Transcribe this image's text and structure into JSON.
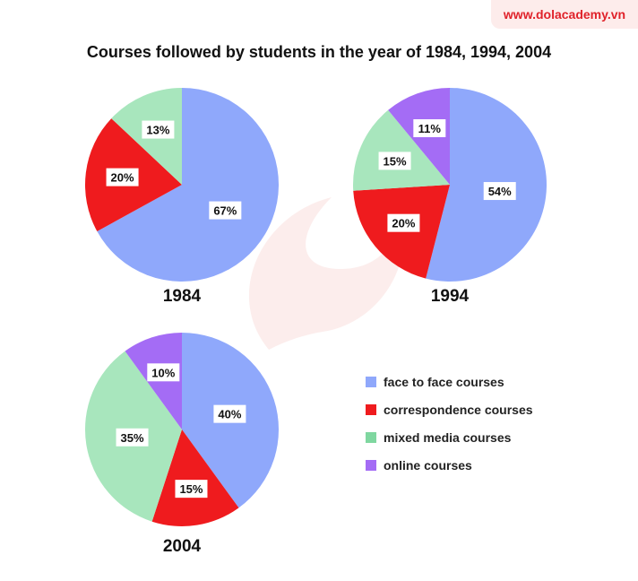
{
  "watermark": {
    "text": "www.dolacademy.vn"
  },
  "title": "Courses followed by students in the year of 1984, 1994, 2004",
  "legend": [
    {
      "label": "face to face courses",
      "color": "#8fa8fb"
    },
    {
      "label": "correspondence courses",
      "color": "#ef1b1e"
    },
    {
      "label": "mixed media courses",
      "color": "#a8e6bd"
    },
    {
      "label": "online courses",
      "color": "#a46cf5"
    }
  ],
  "legend_swatch_colors": [
    "#8fa8fb",
    "#ef1b1e",
    "#7fd7a0",
    "#a46cf5"
  ],
  "chart_data": [
    {
      "type": "pie",
      "title": "1984",
      "slices": [
        {
          "name": "face to face courses",
          "value": 67,
          "label": "67%",
          "color": "#8fa8fb"
        },
        {
          "name": "correspondence courses",
          "value": 20,
          "label": "20%",
          "color": "#ef1b1e"
        },
        {
          "name": "mixed media courses",
          "value": 13,
          "label": "13%",
          "color": "#a8e6bd"
        }
      ]
    },
    {
      "type": "pie",
      "title": "1994",
      "slices": [
        {
          "name": "face to face courses",
          "value": 54,
          "label": "54%",
          "color": "#8fa8fb"
        },
        {
          "name": "correspondence courses",
          "value": 20,
          "label": "20%",
          "color": "#ef1b1e"
        },
        {
          "name": "mixed media courses",
          "value": 15,
          "label": "15%",
          "color": "#a8e6bd"
        },
        {
          "name": "online courses",
          "value": 11,
          "label": "11%",
          "color": "#a46cf5"
        }
      ]
    },
    {
      "type": "pie",
      "title": "2004",
      "slices": [
        {
          "name": "face to face courses",
          "value": 40,
          "label": "40%",
          "color": "#8fa8fb"
        },
        {
          "name": "correspondence courses",
          "value": 15,
          "label": "15%",
          "color": "#ef1b1e"
        },
        {
          "name": "mixed media courses",
          "value": 35,
          "label": "35%",
          "color": "#a8e6bd"
        },
        {
          "name": "online courses",
          "value": 10,
          "label": "10%",
          "color": "#a46cf5"
        }
      ]
    }
  ]
}
